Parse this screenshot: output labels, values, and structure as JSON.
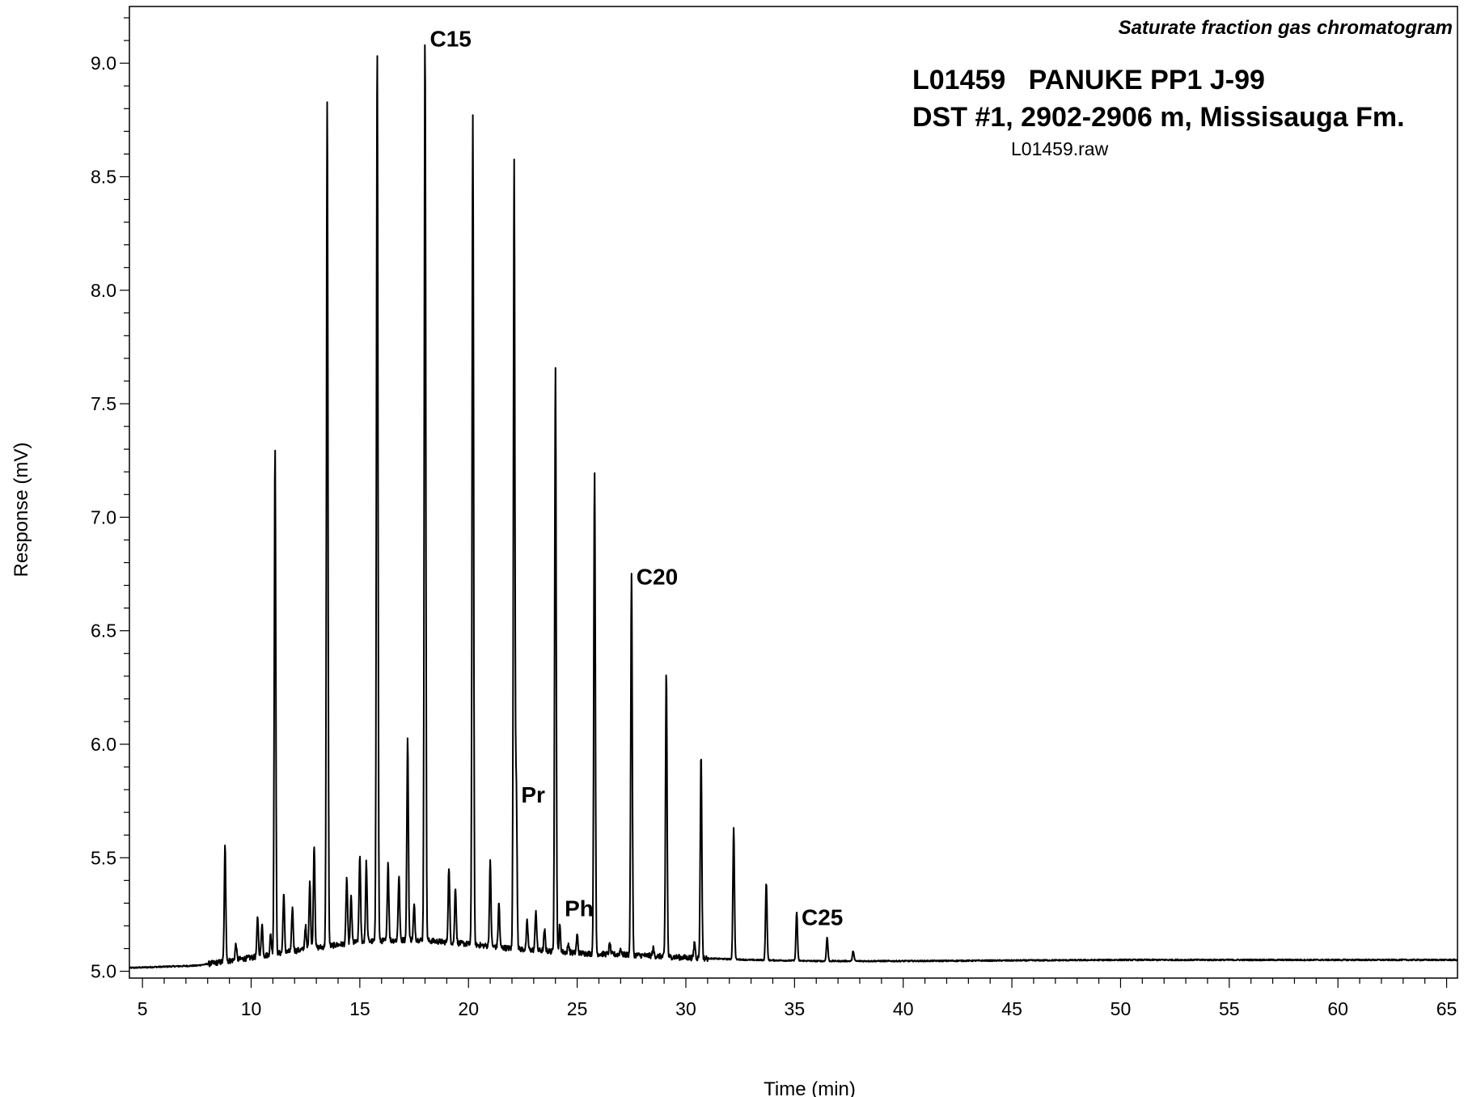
{
  "chart_data": {
    "type": "line",
    "subtitle": "Saturate fraction gas chromatogram",
    "title_lines": [
      "L01459   PANUKE PP1 J-99",
      "DST #1, 2902-2906 m, Missisauga Fm."
    ],
    "file_label": "L01459.raw",
    "xlabel": "Time (min)",
    "ylabel": "Response (mV)",
    "xlim": [
      4.4,
      65.5
    ],
    "ylim": [
      4.97,
      9.25
    ],
    "x_ticks": [
      5,
      10,
      15,
      20,
      25,
      30,
      35,
      40,
      45,
      50,
      55,
      60,
      65
    ],
    "x_minor_step": 1,
    "y_ticks": [
      5.0,
      5.5,
      6.0,
      6.5,
      7.0,
      7.5,
      8.0,
      8.5,
      9.0
    ],
    "y_minor_step": 0.1,
    "grid": false,
    "line_color": "#000000",
    "series": [
      {
        "baseline": [
          [
            4.4,
            5.015
          ],
          [
            7.5,
            5.025
          ],
          [
            10,
            5.06
          ],
          [
            12,
            5.09
          ],
          [
            15,
            5.13
          ],
          [
            17.5,
            5.14
          ],
          [
            20,
            5.12
          ],
          [
            22,
            5.1
          ],
          [
            25,
            5.08
          ],
          [
            28,
            5.07
          ],
          [
            30,
            5.06
          ],
          [
            33,
            5.05
          ],
          [
            36,
            5.045
          ],
          [
            40,
            5.045
          ],
          [
            50,
            5.05
          ],
          [
            60,
            5.05
          ],
          [
            65.5,
            5.05
          ]
        ],
        "peaks": [
          [
            8.8,
            5.55
          ],
          [
            9.3,
            5.12
          ],
          [
            10.3,
            5.24
          ],
          [
            10.5,
            5.21
          ],
          [
            10.9,
            5.16
          ],
          [
            11.1,
            7.32
          ],
          [
            11.5,
            5.34
          ],
          [
            11.9,
            5.28
          ],
          [
            12.5,
            5.2
          ],
          [
            12.7,
            5.4
          ],
          [
            12.9,
            5.56
          ],
          [
            13.5,
            8.85
          ],
          [
            14.4,
            5.41
          ],
          [
            14.6,
            5.33
          ],
          [
            15.0,
            5.51
          ],
          [
            15.3,
            5.48
          ],
          [
            15.8,
            9.07
          ],
          [
            16.3,
            5.48
          ],
          [
            16.8,
            5.42
          ],
          [
            17.2,
            6.02
          ],
          [
            17.5,
            5.29
          ],
          [
            18.0,
            9.13
          ],
          [
            19.1,
            5.46
          ],
          [
            19.4,
            5.37
          ],
          [
            20.2,
            8.77
          ],
          [
            21.0,
            5.48
          ],
          [
            21.4,
            5.3
          ],
          [
            22.1,
            8.56
          ],
          [
            22.2,
            5.8
          ],
          [
            22.7,
            5.22
          ],
          [
            23.1,
            5.27
          ],
          [
            23.5,
            5.18
          ],
          [
            24.0,
            7.66
          ],
          [
            24.2,
            5.2
          ],
          [
            24.6,
            5.12
          ],
          [
            25.0,
            5.16
          ],
          [
            25.8,
            7.21
          ],
          [
            26.5,
            5.12
          ],
          [
            27.0,
            5.1
          ],
          [
            27.5,
            6.76
          ],
          [
            28.5,
            5.1
          ],
          [
            29.1,
            6.32
          ],
          [
            30.4,
            5.13
          ],
          [
            30.7,
            5.96
          ],
          [
            32.2,
            5.63
          ],
          [
            33.7,
            5.39
          ],
          [
            35.1,
            5.26
          ],
          [
            36.5,
            5.15
          ],
          [
            37.7,
            5.09
          ]
        ]
      }
    ],
    "annotations": [
      {
        "text": "C15",
        "x": 18.0,
        "y": 9.13
      },
      {
        "text": "Pr",
        "x": 22.2,
        "y": 5.8
      },
      {
        "text": "Ph",
        "x": 24.2,
        "y": 5.3
      },
      {
        "text": "C20",
        "x": 27.5,
        "y": 6.76
      },
      {
        "text": "C25",
        "x": 35.1,
        "y": 5.26
      }
    ]
  }
}
